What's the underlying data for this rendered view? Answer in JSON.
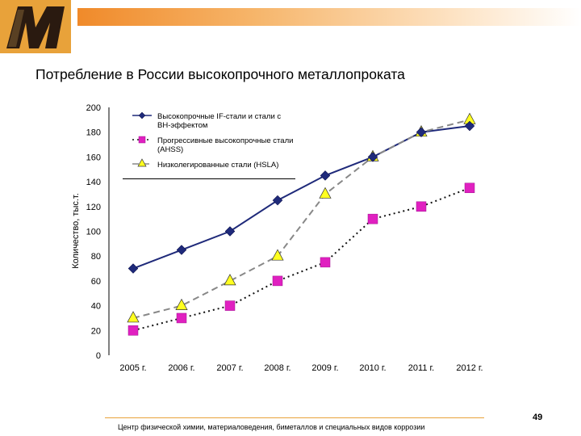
{
  "slide": {
    "title": "Потребление в России высокопрочного металлопроката",
    "footer": "Центр физической химии, материаловедения, биметаллов и специальных видов коррозии",
    "page_number": "49"
  },
  "colors": {
    "accent": "#f08a2a",
    "series_1": "#1f2a7a",
    "series_2": "#e020c0",
    "series_3": "#ffff20"
  },
  "chart_data": {
    "type": "line",
    "title": "",
    "xlabel": "",
    "ylabel": "Количество, тыс.т.",
    "categories": [
      "2005 г.",
      "2006 г.",
      "2007 г.",
      "2008 г.",
      "2009 г.",
      "2010 г.",
      "2011 г.",
      "2012 г."
    ],
    "ylim": [
      0,
      200
    ],
    "yticks": [
      0,
      20,
      40,
      60,
      80,
      100,
      120,
      140,
      160,
      180,
      200
    ],
    "grid": false,
    "legend_position": "top-left",
    "series": [
      {
        "name": "Высокопрочные IF-стали и стали с BH-эффектом",
        "marker": "diamond",
        "line": "solid",
        "color": "#1f2a7a",
        "values": [
          70,
          85,
          100,
          125,
          145,
          160,
          180,
          185
        ]
      },
      {
        "name": "Прогрессивные высокопрочные стали (AHSS)",
        "marker": "square",
        "line": "dotted",
        "color": "#e020c0",
        "values": [
          20,
          30,
          40,
          60,
          75,
          110,
          120,
          135
        ]
      },
      {
        "name": "Низколегированные стали (HSLA)",
        "marker": "triangle",
        "line": "dashed",
        "color": "#ffff20",
        "values": [
          30,
          40,
          60,
          80,
          130,
          160,
          180,
          190
        ]
      }
    ]
  }
}
